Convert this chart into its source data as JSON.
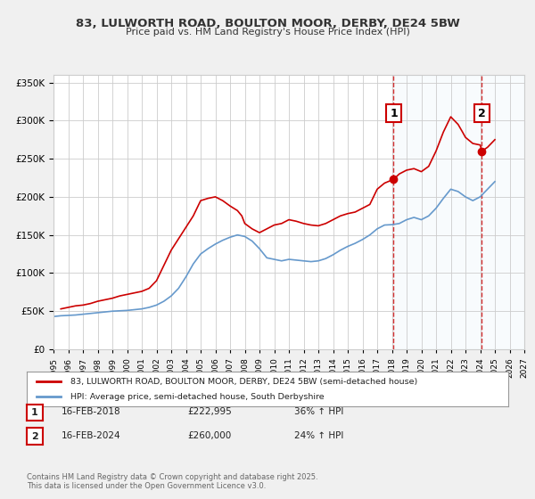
{
  "title1": "83, LULWORTH ROAD, BOULTON MOOR, DERBY, DE24 5BW",
  "title2": "Price paid vs. HM Land Registry's House Price Index (HPI)",
  "xlabel": "",
  "ylabel": "",
  "background_color": "#f0f0f0",
  "plot_background_color": "#ffffff",
  "grid_color": "#cccccc",
  "red_color": "#cc0000",
  "blue_color": "#6699cc",
  "marker1_year": 2018.12,
  "marker2_year": 2024.12,
  "marker1_value": 222995,
  "marker2_value": 260000,
  "annotation1_label": "1",
  "annotation2_label": "2",
  "legend_line1": "83, LULWORTH ROAD, BOULTON MOOR, DERBY, DE24 5BW (semi-detached house)",
  "legend_line2": "HPI: Average price, semi-detached house, South Derbyshire",
  "table_row1": [
    "1",
    "16-FEB-2018",
    "£222,995",
    "36% ↑ HPI"
  ],
  "table_row2": [
    "2",
    "16-FEB-2024",
    "£260,000",
    "24% ↑ HPI"
  ],
  "footer": "Contains HM Land Registry data © Crown copyright and database right 2025.\nThis data is licensed under the Open Government Licence v3.0.",
  "ylim": [
    0,
    360000
  ],
  "xlim_start": 1995,
  "xlim_end": 2027,
  "red_data": {
    "years": [
      1995.5,
      1996.0,
      1996.5,
      1997.0,
      1997.5,
      1998.0,
      1998.5,
      1999.0,
      1999.5,
      2000.0,
      2000.5,
      2001.0,
      2001.5,
      2002.0,
      2002.5,
      2003.0,
      2003.5,
      2004.0,
      2004.5,
      2005.0,
      2005.5,
      2006.0,
      2006.5,
      2007.0,
      2007.5,
      2007.8,
      2008.0,
      2008.5,
      2009.0,
      2009.5,
      2010.0,
      2010.5,
      2011.0,
      2011.5,
      2012.0,
      2012.5,
      2013.0,
      2013.5,
      2014.0,
      2014.5,
      2015.0,
      2015.5,
      2016.0,
      2016.5,
      2017.0,
      2017.5,
      2018.12,
      2018.5,
      2019.0,
      2019.5,
      2020.0,
      2020.5,
      2021.0,
      2021.5,
      2022.0,
      2022.5,
      2022.8,
      2023.0,
      2023.5,
      2024.0,
      2024.12,
      2024.5,
      2025.0
    ],
    "values": [
      53000,
      55000,
      57000,
      58000,
      60000,
      63000,
      65000,
      67000,
      70000,
      72000,
      74000,
      76000,
      80000,
      90000,
      110000,
      130000,
      145000,
      160000,
      175000,
      195000,
      198000,
      200000,
      195000,
      188000,
      182000,
      175000,
      165000,
      158000,
      153000,
      158000,
      163000,
      165000,
      170000,
      168000,
      165000,
      163000,
      162000,
      165000,
      170000,
      175000,
      178000,
      180000,
      185000,
      190000,
      210000,
      218000,
      222995,
      230000,
      235000,
      237000,
      233000,
      240000,
      260000,
      285000,
      305000,
      295000,
      285000,
      278000,
      270000,
      268000,
      260000,
      265000,
      275000
    ]
  },
  "blue_data": {
    "years": [
      1995.0,
      1995.5,
      1996.0,
      1996.5,
      1997.0,
      1997.5,
      1998.0,
      1998.5,
      1999.0,
      1999.5,
      2000.0,
      2000.5,
      2001.0,
      2001.5,
      2002.0,
      2002.5,
      2003.0,
      2003.5,
      2004.0,
      2004.5,
      2005.0,
      2005.5,
      2006.0,
      2006.5,
      2007.0,
      2007.5,
      2008.0,
      2008.5,
      2009.0,
      2009.5,
      2010.0,
      2010.5,
      2011.0,
      2011.5,
      2012.0,
      2012.5,
      2013.0,
      2013.5,
      2014.0,
      2014.5,
      2015.0,
      2015.5,
      2016.0,
      2016.5,
      2017.0,
      2017.5,
      2018.0,
      2018.5,
      2019.0,
      2019.5,
      2020.0,
      2020.5,
      2021.0,
      2021.5,
      2022.0,
      2022.5,
      2023.0,
      2023.5,
      2024.0,
      2024.5,
      2025.0
    ],
    "values": [
      43000,
      44000,
      44500,
      45000,
      46000,
      47000,
      48000,
      49000,
      50000,
      50500,
      51000,
      52000,
      53000,
      55000,
      58000,
      63000,
      70000,
      80000,
      95000,
      112000,
      125000,
      132000,
      138000,
      143000,
      147000,
      150000,
      148000,
      142000,
      132000,
      120000,
      118000,
      116000,
      118000,
      117000,
      116000,
      115000,
      116000,
      119000,
      124000,
      130000,
      135000,
      139000,
      144000,
      150000,
      158000,
      163000,
      163500,
      165000,
      170000,
      173000,
      170000,
      175000,
      185000,
      198000,
      210000,
      207000,
      200000,
      195000,
      200000,
      210000,
      220000
    ]
  }
}
